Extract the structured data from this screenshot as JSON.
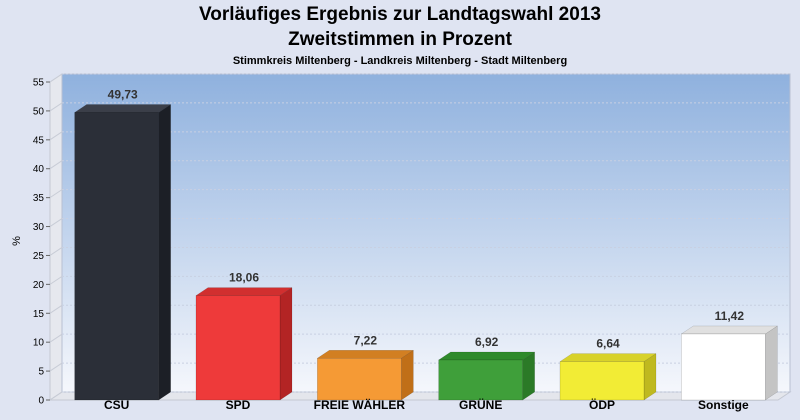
{
  "header": {
    "title_line1": "Vorläufiges Ergebnis zur Landtagswahl 2013",
    "title_line2": "Zweitstimmen in Prozent",
    "subtitle": "Stimmkreis Miltenberg - Landkreis Miltenberg - Stadt Miltenberg"
  },
  "chart_data": {
    "type": "bar",
    "title": "Vorläufiges Ergebnis zur Landtagswahl 2013 Zweitstimmen in Prozent",
    "subtitle": "Stimmkreis Miltenberg - Landkreis Miltenberg - Stadt Miltenberg",
    "xlabel": "",
    "ylabel": "%",
    "ylim": [
      0,
      55
    ],
    "yticks": [
      0,
      5,
      10,
      15,
      20,
      25,
      30,
      35,
      40,
      45,
      50,
      55
    ],
    "grid": true,
    "categories": [
      "CSU",
      "SPD",
      "FREIE WÄHLER",
      "GRÜNE",
      "ÖDP",
      "Sonstige"
    ],
    "values": [
      49.73,
      18.06,
      7.22,
      6.92,
      6.64,
      11.42
    ],
    "value_labels": [
      "49,73",
      "18,06",
      "7,22",
      "6,92",
      "6,64",
      "11,42"
    ],
    "colors": [
      "#2b2f38",
      "#ee3a3a",
      "#f59a35",
      "#3f9f3a",
      "#f2ec35",
      "#ffffff"
    ],
    "top_colors": [
      "#3b3f49",
      "#d12f2f",
      "#d27f22",
      "#2f8a2b",
      "#d8d22a",
      "#e0e0e0"
    ],
    "side_colors": [
      "#1c1f26",
      "#b32424",
      "#c06f18",
      "#2b7a27",
      "#bfb91f",
      "#c4c4c4"
    ]
  }
}
